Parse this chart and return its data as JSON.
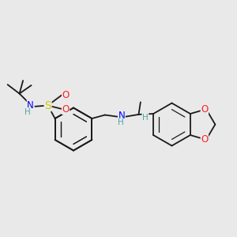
{
  "background_color": "#e9e9e9",
  "bond_color": "#1a1a1a",
  "N_color": "#0000ff",
  "S_color": "#cccc00",
  "O_color": "#ff2020",
  "H_color": "#4da6a6",
  "figsize": [
    3.0,
    3.0
  ],
  "dpi": 100,
  "xlim": [
    0,
    10
  ],
  "ylim": [
    0,
    10
  ]
}
